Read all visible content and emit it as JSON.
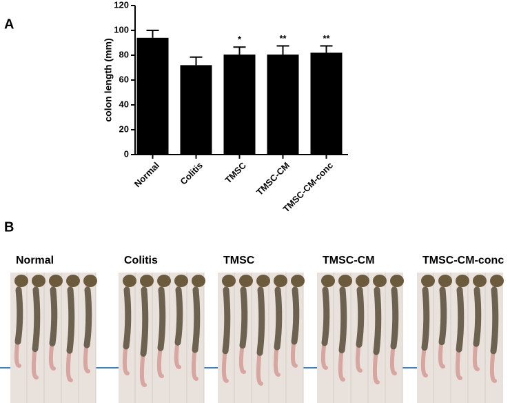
{
  "panel_labels": [
    "A",
    "B"
  ],
  "chart_data": {
    "type": "bar",
    "y_label": "colon length (mm)",
    "categories": [
      "Normal",
      "Colitis",
      "TMSC",
      "TMSC-CM",
      "TMSC-CM-conc"
    ],
    "values": [
      94,
      72,
      80.5,
      80.5,
      82
    ],
    "errors": [
      6,
      6.5,
      6,
      7,
      5.5
    ],
    "color": "#000000",
    "annotations": [
      {
        "category": "TMSC",
        "text": "*"
      },
      {
        "category": "TMSC-CM",
        "text": "**"
      },
      {
        "category": "TMSC-CM-conc",
        "text": "**"
      }
    ],
    "ylim": [
      0,
      120
    ],
    "yticks": [
      0,
      20,
      40,
      60,
      80,
      100,
      120
    ],
    "grid": false
  },
  "photo_groups": [
    "Normal",
    "Colitis",
    "TMSC",
    "TMSC-CM",
    "TMSC-CM-conc"
  ]
}
